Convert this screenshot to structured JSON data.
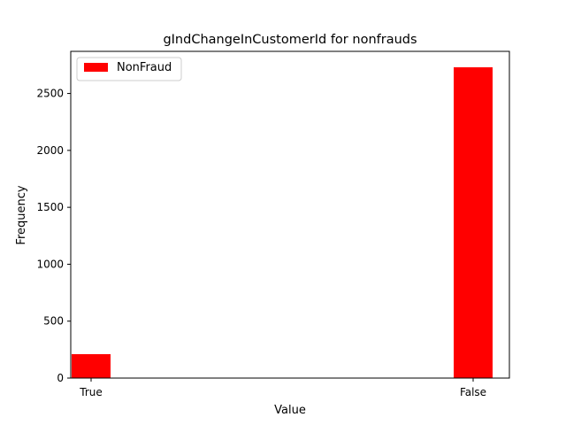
{
  "chart_data": {
    "type": "bar",
    "title": "gIndChangeInCustomerId for nonfrauds",
    "xlabel": "Value",
    "ylabel": "Frequency",
    "categories": [
      "True",
      "False"
    ],
    "series": [
      {
        "name": "NonFraud",
        "values": [
          210,
          2730
        ],
        "color": "#ff0000"
      }
    ],
    "ylim": [
      0,
      2870
    ],
    "yticks": [
      0,
      500,
      1000,
      1500,
      2000,
      2500
    ],
    "legend": "top-left",
    "grid": false
  }
}
